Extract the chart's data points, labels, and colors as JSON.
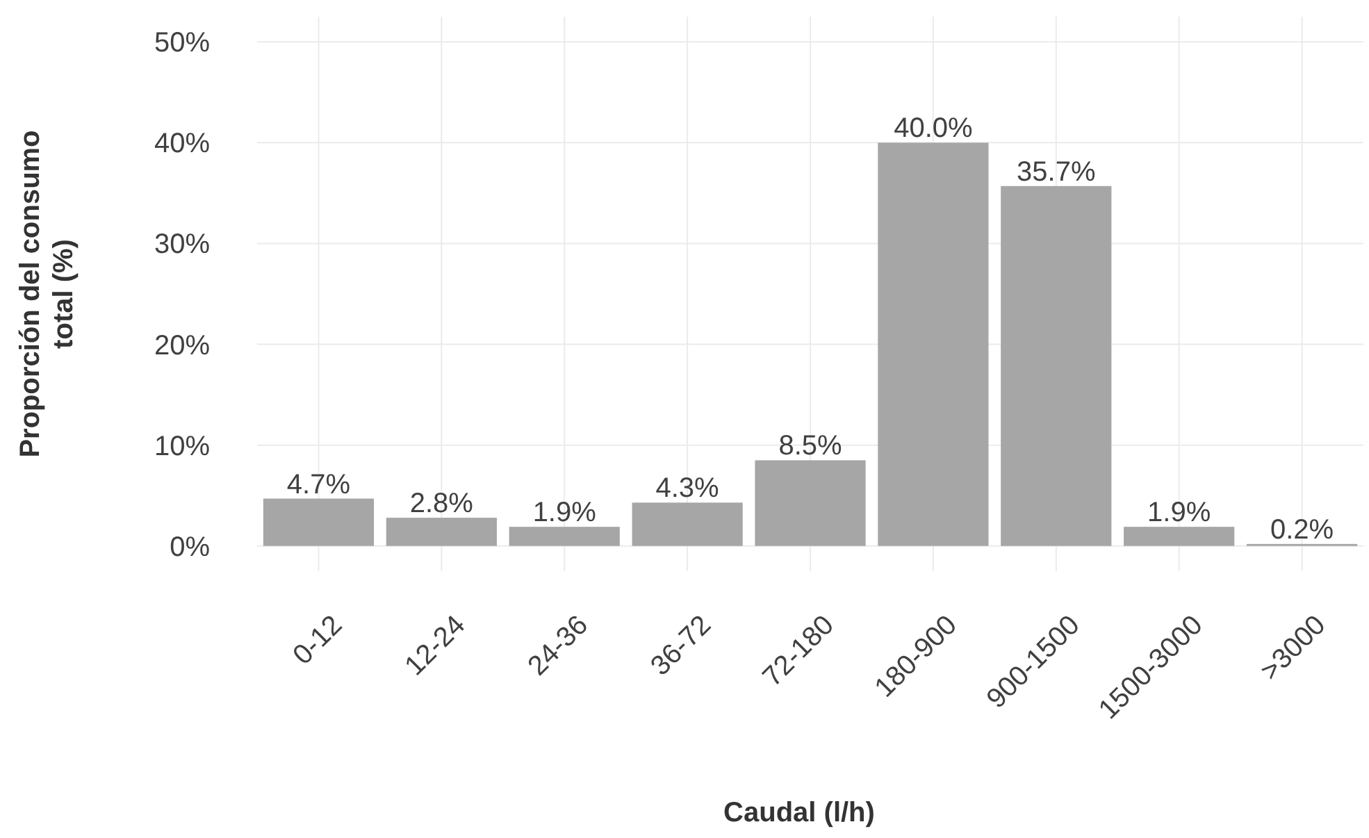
{
  "chart_data": {
    "type": "bar",
    "xlabel": "Caudal (l/h)",
    "ylabel": "Proporción del consumo total (%)",
    "categories": [
      "0-12",
      "12-24",
      "24-36",
      "36-72",
      "72-180",
      "180-900",
      "900-1500",
      "1500-3000",
      ">3000"
    ],
    "values": [
      4.7,
      2.8,
      1.9,
      4.3,
      8.5,
      40.0,
      35.7,
      1.9,
      0.2
    ],
    "value_labels": [
      "4.7%",
      "2.8%",
      "1.9%",
      "4.3%",
      "8.5%",
      "40.0%",
      "35.7%",
      "1.9%",
      "0.2%"
    ],
    "color": "#a6a6a6",
    "ylim": [
      -2.5,
      52.5
    ],
    "yticks": [
      {
        "value": 0,
        "label": "0%"
      },
      {
        "value": 10,
        "label": "10%"
      },
      {
        "value": 20,
        "label": "20%"
      },
      {
        "value": 30,
        "label": "30%"
      },
      {
        "value": 40,
        "label": "40%"
      },
      {
        "value": 50,
        "label": "50%"
      }
    ],
    "grid": true
  }
}
